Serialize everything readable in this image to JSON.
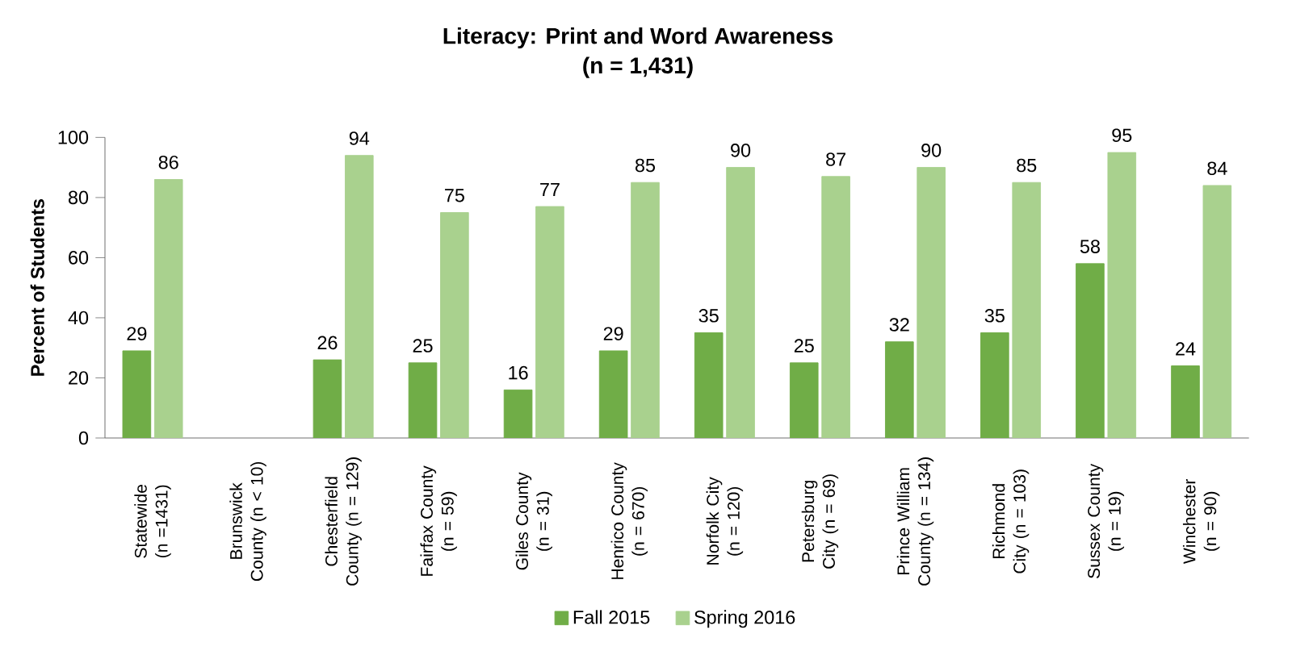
{
  "chart_data": {
    "type": "bar",
    "title": "Literacy: Print and Word Awareness",
    "subtitle": "(n = 1,431)",
    "ylabel": "Percent of Students",
    "categories": [
      "Statewide (n =1431)",
      "Brunswick County (n < 10)",
      "Chesterfield County (n = 129)",
      "Fairfax County (n = 59)",
      "Giles County (n = 31)",
      "Henrico County (n = 670)",
      "Norfolk City (n = 120)",
      "Petersburg City (n = 69)",
      "Prince William County (n = 134)",
      "Richmond City (n = 103)",
      "Sussex County (n = 19)",
      "Winchester (n = 90)"
    ],
    "series": [
      {
        "name": "Fall 2015",
        "color": "#70ad47",
        "values": [
          29,
          null,
          26,
          25,
          16,
          29,
          35,
          25,
          32,
          35,
          58,
          24
        ]
      },
      {
        "name": "Spring 2016",
        "color": "#a9d18e",
        "values": [
          86,
          null,
          94,
          75,
          77,
          85,
          90,
          87,
          90,
          85,
          95,
          84
        ]
      }
    ],
    "ylim": [
      0,
      100
    ],
    "yticks": [
      0,
      20,
      40,
      60,
      80,
      100
    ],
    "data_labels": true,
    "legend": "bottom",
    "grid": false
  }
}
